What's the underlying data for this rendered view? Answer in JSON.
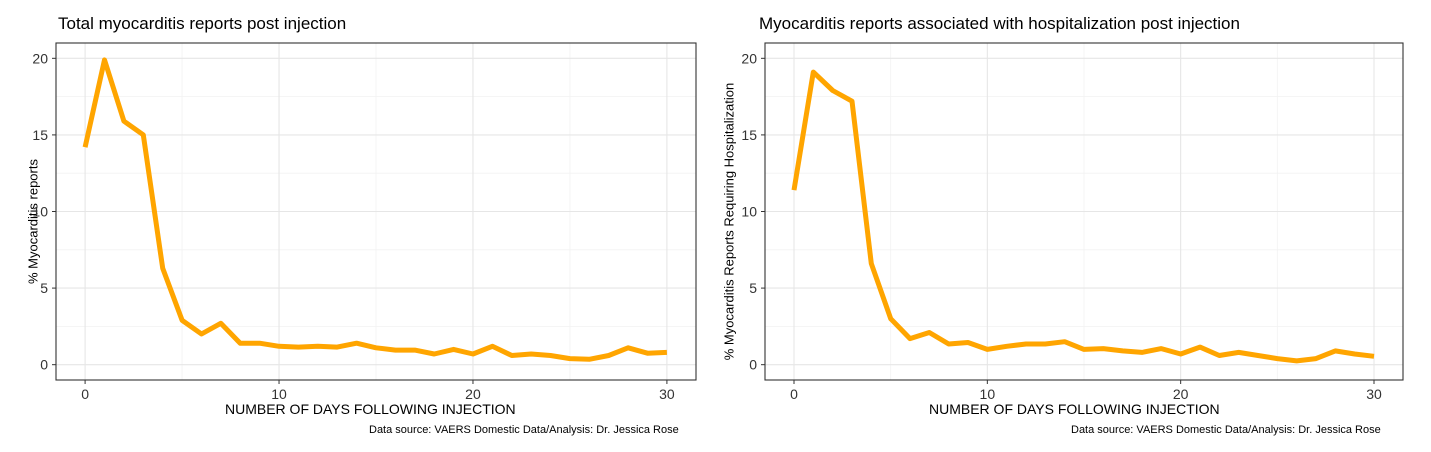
{
  "chart_data": [
    {
      "type": "line",
      "title": "Total myocarditis reports post injection",
      "xlabel": "NUMBER OF DAYS FOLLOWING INJECTION",
      "ylabel": "% Myocarditis reports",
      "caption": "Data source: VAERS Domestic Data/Analysis: Dr. Jessica Rose",
      "xlim": [
        -1.5,
        31.5
      ],
      "ylim": [
        -1,
        21
      ],
      "xticks": [
        0,
        10,
        20,
        30
      ],
      "yticks": [
        0,
        5,
        10,
        15,
        20
      ],
      "grid": true,
      "line_color": "#FFA500",
      "x": [
        0,
        1,
        2,
        3,
        4,
        5,
        6,
        7,
        8,
        9,
        10,
        11,
        12,
        13,
        14,
        15,
        16,
        17,
        18,
        19,
        20,
        21,
        22,
        23,
        24,
        25,
        26,
        27,
        28,
        29,
        30
      ],
      "y": [
        14.2,
        19.9,
        15.9,
        15.0,
        6.3,
        2.9,
        2.0,
        2.7,
        1.4,
        1.4,
        1.2,
        1.15,
        1.2,
        1.15,
        1.4,
        1.1,
        0.95,
        0.95,
        0.7,
        1.0,
        0.7,
        1.2,
        0.6,
        0.7,
        0.6,
        0.4,
        0.35,
        0.6,
        1.1,
        0.75,
        0.8
      ]
    },
    {
      "type": "line",
      "title": "Myocarditis reports associated with hospitalization post injection",
      "xlabel": "NUMBER OF DAYS FOLLOWING INJECTION",
      "ylabel": "% Myocarditis Reports Requiring Hospitalization",
      "caption": "Data source: VAERS Domestic Data/Analysis: Dr. Jessica Rose",
      "xlim": [
        -1.5,
        31.5
      ],
      "ylim": [
        -1,
        21
      ],
      "xticks": [
        0,
        10,
        20,
        30
      ],
      "yticks": [
        0,
        5,
        10,
        15,
        20
      ],
      "grid": true,
      "line_color": "#FFA500",
      "x": [
        0,
        1,
        2,
        3,
        4,
        5,
        6,
        7,
        8,
        9,
        10,
        11,
        12,
        13,
        14,
        15,
        16,
        17,
        18,
        19,
        20,
        21,
        22,
        23,
        24,
        25,
        26,
        27,
        28,
        29,
        30
      ],
      "y": [
        11.4,
        19.1,
        17.9,
        17.2,
        6.6,
        3.0,
        1.7,
        2.1,
        1.35,
        1.45,
        1.0,
        1.2,
        1.35,
        1.35,
        1.5,
        1.0,
        1.05,
        0.9,
        0.8,
        1.05,
        0.7,
        1.15,
        0.6,
        0.8,
        0.6,
        0.4,
        0.25,
        0.4,
        0.9,
        0.7,
        0.55
      ]
    }
  ]
}
